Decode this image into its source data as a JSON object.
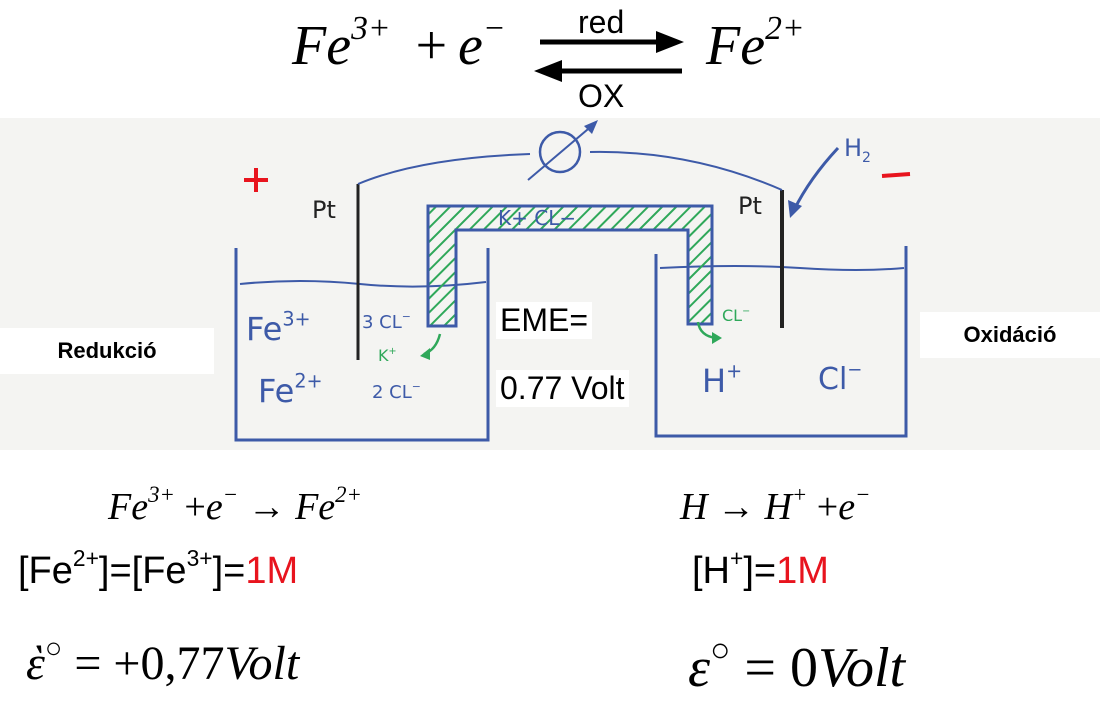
{
  "top_equation": {
    "left_species": "Fe",
    "left_charge": "3+",
    "plus": "+",
    "electron": "e",
    "electron_charge": "−",
    "arrow_top_label": "red",
    "arrow_bottom_label": "OX",
    "right_species": "Fe",
    "right_charge": "2+"
  },
  "sketch": {
    "plus_sign": "+",
    "minus_sign": "−",
    "left_electrode": "Pt",
    "right_electrode": "Pt",
    "gas": "H",
    "gas_subscript": "2",
    "bridge": "K+  CL−",
    "left_ion_top": "Fe",
    "left_ion_top_charge": "3+",
    "left_ion_bottom": "Fe",
    "left_ion_bottom_charge": "2+",
    "left_bridge_cl": "3 CL",
    "left_bridge_k": "K",
    "left_bridge_cl2": "2 CL",
    "right_bridge_cl": "CL",
    "right_ion_h": "H",
    "right_ion_cl": "Cl",
    "eme_label": "EME=",
    "eme_value": "0.77 Volt"
  },
  "labels": {
    "left": "Redukció",
    "right": "Oxidáció"
  },
  "left_reaction": {
    "lhs": "Fe",
    "lhs_charge": "3+",
    "plus": "+",
    "electron": "e",
    "electron_charge": "−",
    "arrow": "→",
    "rhs": "Fe",
    "rhs_charge": "2+"
  },
  "right_reaction": {
    "lhs": "H",
    "arrow": "→",
    "rhs": "H",
    "rhs_charge": "+",
    "plus": "+",
    "electron": "e",
    "electron_charge": "−"
  },
  "left_concentration": {
    "prefix": "[Fe",
    "charge1": "2+",
    "middle": "]=[Fe",
    "charge2": "3+",
    "suffix": "]=",
    "value": "1M"
  },
  "right_concentration": {
    "prefix": "[H",
    "charge": "+",
    "suffix": "]=",
    "value": "1M"
  },
  "left_potential": {
    "symbol": "ὲ",
    "degree": "○",
    "equals": "=",
    "value": "+0,77",
    "unit": "Volt"
  },
  "right_potential": {
    "symbol": "ε",
    "degree": "○",
    "equals": "=",
    "value": "0",
    "unit": "Volt"
  },
  "colors": {
    "sketch_blue": "#3d5aa8",
    "hatch_green": "#2fa85a",
    "accent_red": "#e8141e"
  }
}
